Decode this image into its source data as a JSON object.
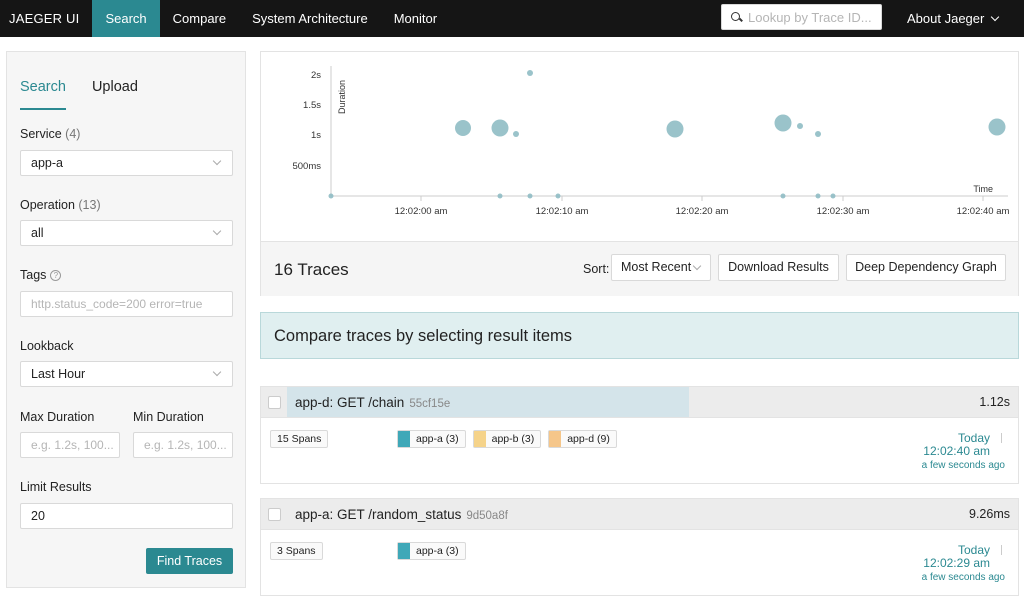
{
  "nav": {
    "brand": "JAEGER UI",
    "links": [
      "Search",
      "Compare",
      "System Architecture",
      "Monitor"
    ],
    "lookup_placeholder": "Lookup by Trace ID...",
    "about": "About Jaeger"
  },
  "search_panel": {
    "tabs": [
      "Search",
      "Upload"
    ],
    "service_label": "Service",
    "service_count": "(4)",
    "service_value": "app-a",
    "operation_label": "Operation",
    "operation_count": "(13)",
    "operation_value": "all",
    "tags_label": "Tags",
    "tags_placeholder": "http.status_code=200 error=true",
    "lookback_label": "Lookback",
    "lookback_value": "Last Hour",
    "max_duration_label": "Max Duration",
    "min_duration_label": "Min Duration",
    "duration_placeholder": "e.g. 1.2s, 100...",
    "limit_label": "Limit Results",
    "limit_value": "20",
    "find_button": "Find Traces"
  },
  "scatter": {
    "y_axis_title": "Duration",
    "x_axis_title": "Time",
    "y_ticks": [
      "2s",
      "1.5s",
      "1s",
      "500ms"
    ],
    "x_ticks": [
      "12:02:00 am",
      "12:02:10 am",
      "12:02:20 am",
      "12:02:30 am",
      "12:02:40 am"
    ],
    "point_color": "#8fbcc4"
  },
  "results": {
    "count_label": "16 Traces",
    "sort_label": "Sort:",
    "sort_value": "Most Recent",
    "download_button": "Download Results",
    "deep_dependency_button": "Deep Dependency Graph",
    "compare_banner": "Compare traces by selecting result items"
  },
  "traces": [
    {
      "title": "app-d: GET /chain",
      "id": "55cf15e",
      "duration": "1.12s",
      "duration_fraction": 0.55,
      "spans": "15 Spans",
      "services": [
        {
          "name": "app-a (3)",
          "color": "#3fa8b8"
        },
        {
          "name": "app-b (3)",
          "color": "#f5d38a"
        },
        {
          "name": "app-d (9)",
          "color": "#f5c68a"
        }
      ],
      "day": "Today",
      "time": "12:02:40 am",
      "ago": "a few seconds ago"
    },
    {
      "title": "app-a: GET /random_status",
      "id": "9d50a8f",
      "duration": "9.26ms",
      "duration_fraction": 0.0,
      "spans": "3 Spans",
      "services": [
        {
          "name": "app-a (3)",
          "color": "#3fa8b8"
        }
      ],
      "day": "Today",
      "time": "12:02:29 am",
      "ago": "a few seconds ago"
    }
  ],
  "colors": {
    "accent": "#2b8991",
    "nav_bg": "#151515",
    "compare_bg": "#e0eff0"
  }
}
